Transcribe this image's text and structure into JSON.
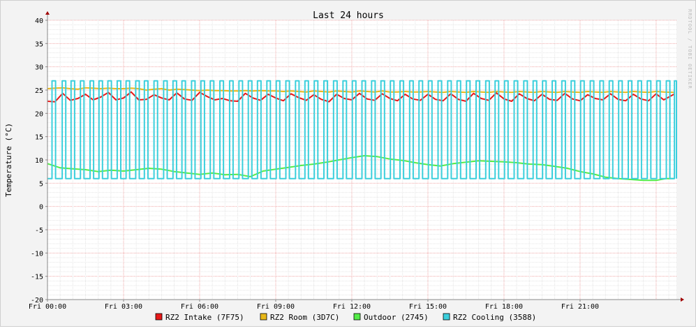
{
  "chart_data": {
    "type": "line",
    "title": "Last 24 hours",
    "ylabel": "Temperature (°C)",
    "xlabel": "",
    "ylim": [
      -20,
      40
    ],
    "xlim": [
      0,
      24.8
    ],
    "grid": true,
    "legend_position": "bottom-center",
    "watermark": "RRDTOOL / TOBI OETIKER",
    "y_ticks": [
      40,
      35,
      30,
      25,
      20,
      15,
      10,
      5,
      0,
      -5,
      -10,
      -15,
      -20
    ],
    "x_ticks": [
      {
        "label": "Fri 00:00",
        "hour": 0
      },
      {
        "label": "Fri 03:00",
        "hour": 3
      },
      {
        "label": "Fri 06:00",
        "hour": 6
      },
      {
        "label": "Fri 09:00",
        "hour": 9
      },
      {
        "label": "Fri 12:00",
        "hour": 12
      },
      {
        "label": "Fri 15:00",
        "hour": 15
      },
      {
        "label": "Fri 18:00",
        "hour": 18
      },
      {
        "label": "Fri 21:00",
        "hour": 21
      }
    ],
    "series": [
      {
        "name": "RZ2 Intake (7F75)",
        "color": "#e81818",
        "x": [
          0,
          0.3,
          0.6,
          0.9,
          1.2,
          1.5,
          1.8,
          2.1,
          2.4,
          2.7,
          3.0,
          3.3,
          3.6,
          3.9,
          4.2,
          4.5,
          4.8,
          5.1,
          5.4,
          5.7,
          6.0,
          6.3,
          6.6,
          6.9,
          7.2,
          7.5,
          7.8,
          8.1,
          8.4,
          8.7,
          9.0,
          9.3,
          9.6,
          9.9,
          10.2,
          10.5,
          10.8,
          11.1,
          11.4,
          11.7,
          12.0,
          12.3,
          12.6,
          12.9,
          13.2,
          13.5,
          13.8,
          14.1,
          14.4,
          14.7,
          15.0,
          15.3,
          15.6,
          15.9,
          16.2,
          16.5,
          16.8,
          17.1,
          17.4,
          17.7,
          18.0,
          18.3,
          18.6,
          18.9,
          19.2,
          19.5,
          19.8,
          20.1,
          20.4,
          20.7,
          21.0,
          21.3,
          21.6,
          21.9,
          22.2,
          22.5,
          22.8,
          23.1,
          23.4,
          23.7,
          24.0,
          24.3,
          24.7
        ],
        "y": [
          22.6,
          22.5,
          24.3,
          22.8,
          23.2,
          24.1,
          22.9,
          23.5,
          24.5,
          22.9,
          23.3,
          24.6,
          22.9,
          23.0,
          24.0,
          23.3,
          22.9,
          24.4,
          23.1,
          22.8,
          24.5,
          23.6,
          22.9,
          23.2,
          22.7,
          22.6,
          24.3,
          23.3,
          22.8,
          24.1,
          23.3,
          22.7,
          24.2,
          23.4,
          22.8,
          24.0,
          23.0,
          22.5,
          24.1,
          23.2,
          22.9,
          24.3,
          23.1,
          22.8,
          24.2,
          23.2,
          22.7,
          24.1,
          23.1,
          22.8,
          24.1,
          23.0,
          22.7,
          24.2,
          23.0,
          22.6,
          24.3,
          23.2,
          22.8,
          24.4,
          23.1,
          22.6,
          24.2,
          23.2,
          22.7,
          24.1,
          23.0,
          22.8,
          24.3,
          23.1,
          22.7,
          24.0,
          23.2,
          22.9,
          24.2,
          23.0,
          22.7,
          24.1,
          23.1,
          22.7,
          24.2,
          22.9,
          24.1
        ]
      },
      {
        "name": "RZ2 Room (3D7C)",
        "color": "#e8b818",
        "x": [
          0,
          0.3,
          0.6,
          0.9,
          1.2,
          1.5,
          1.8,
          2.1,
          2.4,
          2.7,
          3.0,
          3.3,
          3.6,
          3.9,
          4.2,
          4.5,
          4.8,
          5.1,
          5.4,
          5.7,
          6.0,
          6.3,
          6.6,
          6.9,
          7.2,
          7.5,
          7.8,
          8.1,
          8.4,
          8.7,
          9.0,
          9.3,
          9.6,
          9.9,
          10.2,
          10.5,
          10.8,
          11.1,
          11.4,
          11.7,
          12.0,
          12.3,
          12.6,
          12.9,
          13.2,
          13.5,
          13.8,
          14.1,
          14.4,
          14.7,
          15.0,
          15.3,
          15.6,
          15.9,
          16.2,
          16.5,
          16.8,
          17.1,
          17.4,
          17.7,
          18.0,
          18.3,
          18.6,
          18.9,
          19.2,
          19.5,
          19.8,
          20.1,
          20.4,
          20.7,
          21.0,
          21.3,
          21.6,
          21.9,
          22.2,
          22.5,
          22.8,
          23.1,
          23.4,
          23.7,
          24.0,
          24.3,
          24.7
        ],
        "y": [
          25.3,
          25.4,
          25.5,
          25.3,
          25.2,
          25.5,
          25.4,
          25.3,
          25.4,
          25.3,
          25.3,
          25.4,
          25.3,
          25.0,
          25.2,
          25.3,
          25.0,
          25.2,
          25.1,
          25.0,
          24.9,
          25.0,
          24.9,
          24.9,
          24.8,
          24.8,
          24.9,
          24.8,
          24.9,
          24.8,
          24.8,
          24.7,
          24.8,
          24.7,
          24.6,
          24.8,
          24.7,
          24.6,
          24.8,
          24.7,
          24.6,
          24.8,
          24.7,
          24.6,
          24.8,
          24.6,
          24.6,
          24.7,
          24.6,
          24.6,
          24.7,
          24.6,
          24.5,
          24.7,
          24.6,
          24.5,
          24.7,
          24.6,
          24.5,
          24.7,
          24.6,
          24.5,
          24.7,
          24.6,
          24.5,
          24.7,
          24.6,
          24.5,
          24.7,
          24.6,
          24.5,
          24.7,
          24.6,
          24.5,
          24.7,
          24.6,
          24.5,
          24.7,
          24.6,
          24.5,
          24.7,
          24.6,
          24.5
        ]
      },
      {
        "name": "Outdoor (2745)",
        "color": "#54ec48",
        "x": [
          0,
          0.5,
          1.0,
          1.5,
          2.0,
          2.5,
          3.0,
          3.5,
          4.0,
          4.5,
          5.0,
          5.5,
          6.0,
          6.5,
          7.0,
          7.5,
          8.0,
          8.5,
          9.0,
          9.5,
          10.0,
          10.5,
          11.0,
          11.5,
          12.0,
          12.5,
          13.0,
          13.5,
          14.0,
          14.5,
          15.0,
          15.5,
          16.0,
          16.5,
          17.0,
          17.5,
          18.0,
          18.5,
          19.0,
          19.5,
          20.0,
          20.5,
          21.0,
          21.5,
          22.0,
          22.5,
          23.0,
          23.5,
          24.0,
          24.4,
          24.7
        ],
        "y": [
          9.2,
          8.3,
          8.1,
          7.9,
          7.5,
          7.8,
          7.6,
          7.9,
          8.2,
          8.0,
          7.5,
          7.2,
          6.9,
          7.2,
          6.8,
          6.9,
          6.4,
          7.6,
          8.0,
          8.4,
          8.8,
          9.1,
          9.5,
          10.0,
          10.5,
          10.9,
          10.7,
          10.2,
          9.9,
          9.4,
          9.0,
          8.7,
          9.2,
          9.5,
          9.8,
          9.7,
          9.6,
          9.4,
          9.1,
          9.0,
          8.6,
          8.2,
          7.5,
          7.0,
          6.3,
          6.0,
          5.8,
          5.6,
          5.6,
          6.0,
          6.0
        ]
      },
      {
        "name": "RZ2 Cooling (3588)",
        "color": "#3bcfdc",
        "low": 6.0,
        "high": 27.0,
        "on_hours": [
          0.18,
          0.58,
          0.93,
          1.3,
          1.68,
          2.03,
          2.38,
          2.75,
          3.1,
          3.48,
          3.82,
          4.2,
          4.58,
          4.95,
          5.3,
          5.68,
          6.05,
          6.42,
          6.8,
          7.18,
          7.55,
          7.92,
          8.28,
          8.65,
          9.02,
          9.4,
          9.78,
          10.15,
          10.52,
          10.9,
          11.28,
          11.65,
          12.02,
          12.4,
          12.78,
          13.15,
          13.52,
          13.9,
          14.28,
          14.65,
          15.02,
          15.4,
          15.78,
          16.15,
          16.52,
          16.9,
          17.28,
          17.65,
          18.02,
          18.4,
          18.78,
          19.15,
          19.52,
          19.9,
          20.28,
          20.65,
          21.02,
          21.4,
          21.78,
          22.15,
          22.52,
          22.9,
          23.28,
          23.65,
          24.02,
          24.4,
          24.72
        ],
        "pulse_hours": 0.14
      }
    ]
  }
}
